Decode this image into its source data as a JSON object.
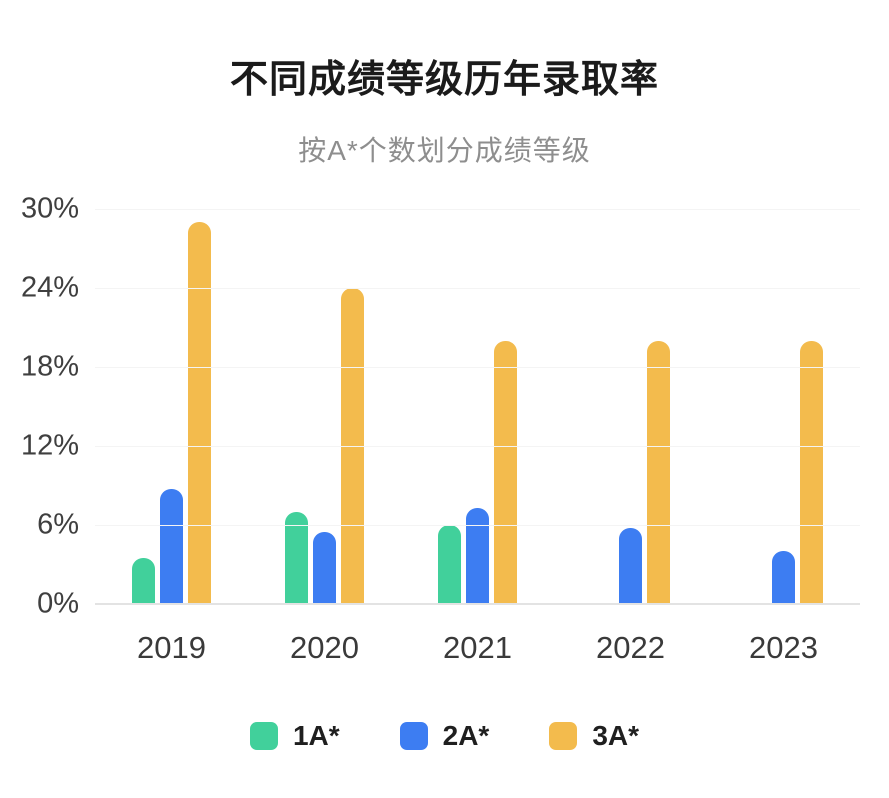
{
  "title": "不同成绩等级历年录取率",
  "subtitle": "按A*个数划分成绩等级",
  "chart_data": {
    "type": "bar",
    "title": "不同成绩等级历年录取率",
    "subtitle": "按A*个数划分成绩等级",
    "categories": [
      "2019",
      "2020",
      "2021",
      "2022",
      "2023"
    ],
    "series": [
      {
        "name": "1A*",
        "color": "#41d09b",
        "values": [
          3.5,
          7,
          6,
          0,
          0
        ]
      },
      {
        "name": "2A*",
        "color": "#3d7df2",
        "values": [
          8.7,
          5.5,
          7.3,
          5.8,
          4
        ]
      },
      {
        "name": "3A*",
        "color": "#f3bb4d",
        "values": [
          29,
          24,
          20,
          20,
          20
        ]
      }
    ],
    "xlabel": "",
    "ylabel": "",
    "ylim": [
      0,
      30
    ],
    "yticks": [
      "0%",
      "6%",
      "12%",
      "18%",
      "24%",
      "30%"
    ],
    "grid": true,
    "legend_position": "bottom"
  }
}
